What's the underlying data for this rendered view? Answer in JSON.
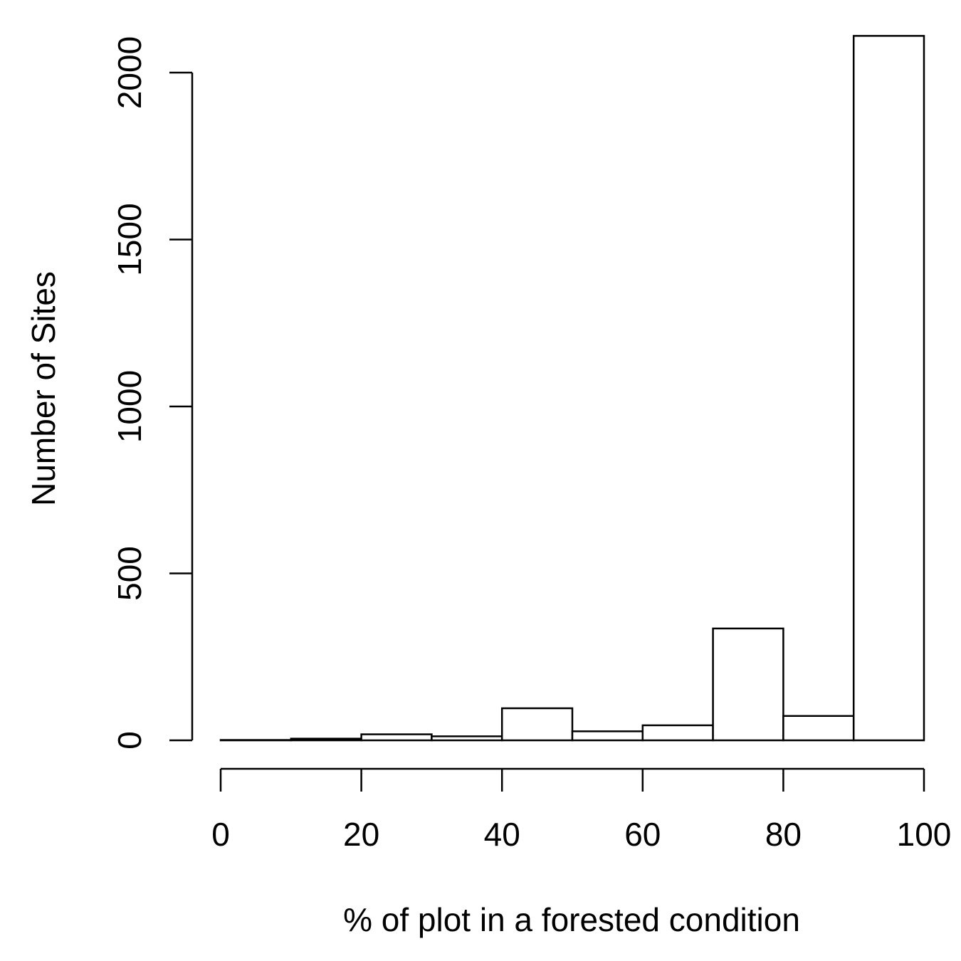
{
  "chart_data": {
    "type": "bar",
    "title": "",
    "xlabel": "% of plot in a forested condition",
    "ylabel": "Number of Sites",
    "bins": [
      {
        "from": 0,
        "to": 10,
        "value": 1
      },
      {
        "from": 10,
        "to": 20,
        "value": 5
      },
      {
        "from": 20,
        "to": 30,
        "value": 18
      },
      {
        "from": 30,
        "to": 40,
        "value": 12
      },
      {
        "from": 40,
        "to": 50,
        "value": 96
      },
      {
        "from": 50,
        "to": 60,
        "value": 27
      },
      {
        "from": 60,
        "to": 70,
        "value": 45
      },
      {
        "from": 70,
        "to": 80,
        "value": 335
      },
      {
        "from": 80,
        "to": 90,
        "value": 73
      },
      {
        "from": 90,
        "to": 100,
        "value": 2110
      }
    ],
    "xlim": [
      0,
      100
    ],
    "ylim": [
      0,
      2000
    ],
    "x_ticks": [
      "0",
      "20",
      "40",
      "60",
      "80",
      "100"
    ],
    "y_ticks": [
      "0",
      "500",
      "1000",
      "1500",
      "2000"
    ],
    "grid": false,
    "bar_fill": "#ffffff",
    "bar_stroke": "#000000"
  }
}
